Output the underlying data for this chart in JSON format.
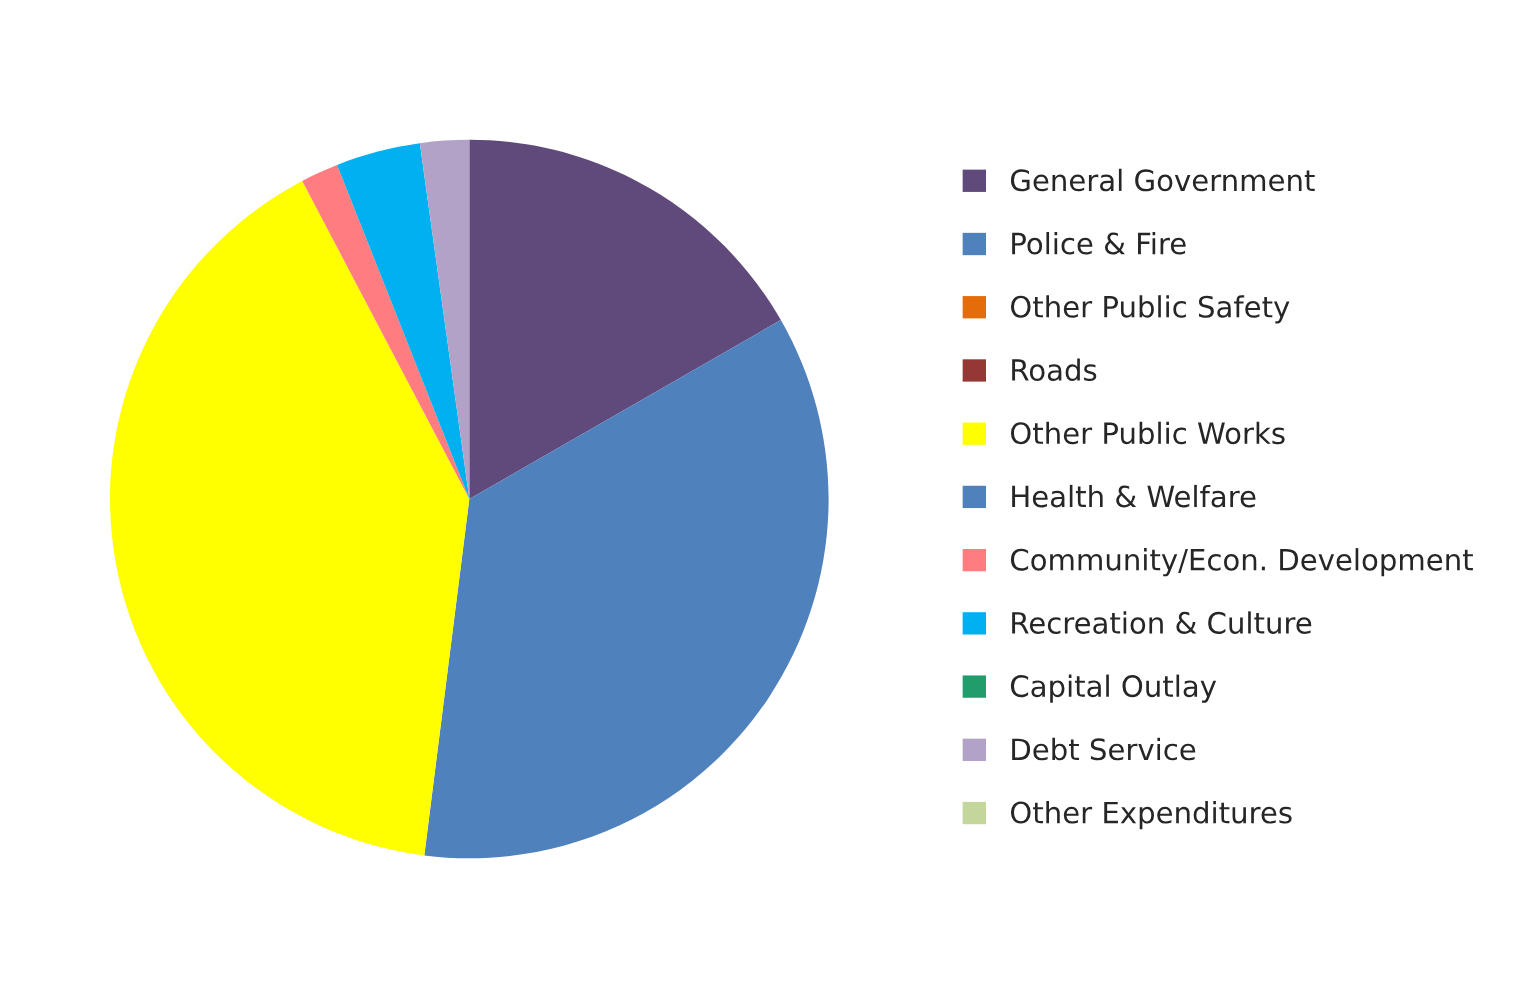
{
  "chart_data": {
    "type": "pie",
    "categories": [
      "General Government",
      "Police & Fire",
      "Other Public Safety",
      "Roads",
      "Other Public Works",
      "Health & Welfare",
      "Community/Econ. Development",
      "Recreation & Culture",
      "Capital Outlay",
      "Debt Service",
      "Other Expenditures"
    ],
    "values": [
      16.7,
      35.3,
      0,
      0,
      40.3,
      0,
      1.7,
      3.8,
      0,
      2.2,
      0
    ],
    "colors": [
      "#604a7b",
      "#4f81bd",
      "#e46c0a",
      "#953735",
      "#ffff00",
      "#4f81bd",
      "#ff7c80",
      "#00b0f0",
      "#1f9d6b",
      "#b3a2c7",
      "#c3d69b"
    ],
    "legend": "right"
  }
}
